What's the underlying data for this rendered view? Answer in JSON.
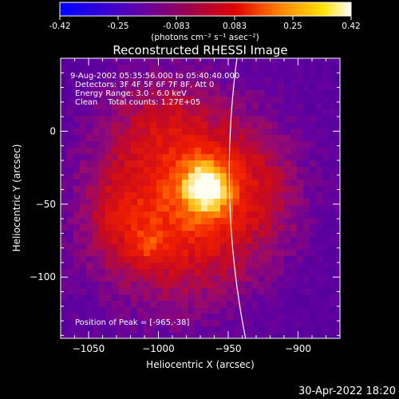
{
  "chart_data": {
    "type": "heatmap",
    "title": "Reconstructed RHESSI Image",
    "xlabel": "Heliocentric X (arcsec)",
    "ylabel": "Heliocentric Y (arcsec)",
    "xlim": [
      -1070,
      -870
    ],
    "ylim": [
      -142,
      50
    ],
    "xticks": [
      -1050,
      -1000,
      -950,
      -900
    ],
    "yticks": [
      0,
      -50,
      -100
    ],
    "colorbar": {
      "ticks": [
        "-0.42",
        "-0.25",
        "-0.083",
        "0.083",
        "0.25",
        "0.42"
      ],
      "unit_label": "(photons cm⁻² s⁻¹ asec⁻²)",
      "min": -0.42,
      "max": 0.42
    },
    "annotations": {
      "time_range": "9-Aug-2002 05:35:56.000 to 05:40:40.000",
      "detectors": "Detectors: 3F 4F 5F 6F 7F 8F, Att 0",
      "energy": "Energy Range: 3.0 - 6.0 keV",
      "clean": "Clean    Total counts: 1.27E+05",
      "peak": "Position of Peak = [-965,-38]"
    },
    "peak": [
      -965,
      -38
    ],
    "secondary_peak": [
      -1007,
      -78
    ],
    "limb_label": "",
    "grid": false
  },
  "footer": {
    "date": "30-Apr-2022 18:20"
  }
}
